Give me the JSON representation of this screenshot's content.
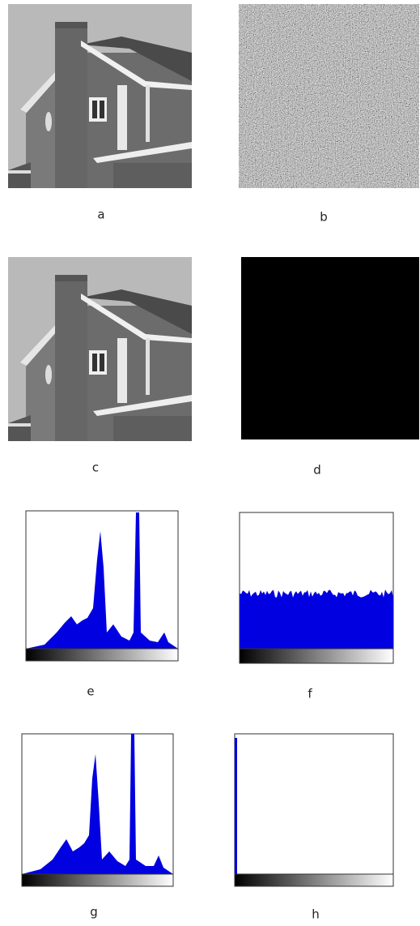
{
  "figure": {
    "panels": [
      {
        "label": "a"
      },
      {
        "label": "b"
      },
      {
        "label": "c"
      },
      {
        "label": "d"
      },
      {
        "label": "e"
      },
      {
        "label": "f"
      },
      {
        "label": "g"
      },
      {
        "label": "h"
      }
    ]
  }
}
